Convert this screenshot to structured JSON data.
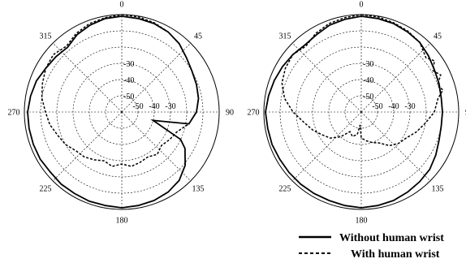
{
  "chart_data": [
    {
      "type": "polar-line",
      "angle_unit": "deg",
      "angle_zero": "top",
      "angle_direction": "clockwise",
      "angle_ticks": [
        0,
        45,
        90,
        135,
        180,
        225,
        270,
        315
      ],
      "angle_tick_labels": [
        "0",
        "45",
        "90",
        "135",
        "180",
        "225",
        "270",
        "315"
      ],
      "radial_range_db": [
        -60,
        0
      ],
      "radial_ticks": [
        -50,
        -40,
        -30
      ],
      "radial_tick_labels": [
        "-50",
        "-40",
        "-30"
      ],
      "grid": true,
      "series": [
        {
          "name": "Without human wrist",
          "style": "solid",
          "color": "#000000",
          "points": [
            [
              0,
              -1
            ],
            [
              10,
              -1.5
            ],
            [
              20,
              -2
            ],
            [
              30,
              -3
            ],
            [
              40,
              -5
            ],
            [
              50,
              -8
            ],
            [
              60,
              -10
            ],
            [
              70,
              -11
            ],
            [
              80,
              -12
            ],
            [
              90,
              -14
            ],
            [
              100,
              -18
            ],
            [
              105,
              -40
            ],
            [
              115,
              -20
            ],
            [
              120,
              -15
            ],
            [
              130,
              -9
            ],
            [
              140,
              -5
            ],
            [
              150,
              -3
            ],
            [
              160,
              -2
            ],
            [
              170,
              -1.5
            ],
            [
              180,
              -1
            ],
            [
              190,
              -1.5
            ],
            [
              200,
              -1.5
            ],
            [
              210,
              -2
            ],
            [
              220,
              -2
            ],
            [
              230,
              -2.5
            ],
            [
              240,
              -2
            ],
            [
              250,
              -2
            ],
            [
              260,
              -2
            ],
            [
              270,
              -2
            ],
            [
              280,
              -3
            ],
            [
              290,
              -4
            ],
            [
              300,
              -6
            ],
            [
              310,
              -7
            ],
            [
              320,
              -8
            ],
            [
              330,
              -5
            ],
            [
              340,
              -3
            ],
            [
              350,
              -1.5
            ]
          ]
        },
        {
          "name": "With human wrist",
          "style": "dashed",
          "color": "#000000",
          "points": [
            [
              0,
              0
            ],
            [
              10,
              -0.5
            ],
            [
              20,
              -1.5
            ],
            [
              30,
              -3
            ],
            [
              40,
              -5
            ],
            [
              50,
              -8
            ],
            [
              60,
              -10
            ],
            [
              70,
              -11
            ],
            [
              80,
              -12
            ],
            [
              90,
              -14
            ],
            [
              100,
              -18
            ],
            [
              110,
              -24
            ],
            [
              120,
              -26
            ],
            [
              130,
              -28
            ],
            [
              140,
              -26
            ],
            [
              150,
              -28
            ],
            [
              160,
              -27
            ],
            [
              170,
              -26
            ],
            [
              180,
              -28
            ],
            [
              190,
              -26
            ],
            [
              200,
              -28
            ],
            [
              210,
              -26
            ],
            [
              220,
              -24
            ],
            [
              230,
              -23
            ],
            [
              240,
              -20
            ],
            [
              250,
              -18
            ],
            [
              260,
              -15
            ],
            [
              270,
              -13
            ],
            [
              280,
              -10
            ],
            [
              290,
              -8
            ],
            [
              300,
              -6
            ],
            [
              310,
              -5
            ],
            [
              320,
              -7
            ],
            [
              330,
              -4
            ],
            [
              340,
              -2
            ],
            [
              350,
              -1
            ]
          ]
        }
      ]
    },
    {
      "type": "polar-line",
      "angle_unit": "deg",
      "angle_zero": "top",
      "angle_direction": "clockwise",
      "angle_ticks": [
        0,
        45,
        90,
        135,
        180,
        225,
        270,
        315
      ],
      "angle_tick_labels": [
        "0",
        "45",
        "90",
        "135",
        "180",
        "225",
        "270",
        "315"
      ],
      "radial_range_db": [
        -60,
        0
      ],
      "radial_ticks": [
        -50,
        -40,
        -30
      ],
      "radial_tick_labels": [
        "-50",
        "-40",
        "-30"
      ],
      "grid": true,
      "series": [
        {
          "name": "Without human wrist",
          "style": "solid",
          "color": "#000000",
          "points": [
            [
              0,
              -1
            ],
            [
              10,
              -1.5
            ],
            [
              20,
              -2
            ],
            [
              30,
              -3
            ],
            [
              40,
              -4
            ],
            [
              50,
              -6
            ],
            [
              60,
              -8
            ],
            [
              70,
              -9
            ],
            [
              80,
              -10
            ],
            [
              90,
              -10
            ],
            [
              100,
              -10
            ],
            [
              110,
              -9
            ],
            [
              120,
              -7
            ],
            [
              130,
              -5
            ],
            [
              140,
              -4
            ],
            [
              150,
              -3
            ],
            [
              160,
              -2
            ],
            [
              170,
              -1.5
            ],
            [
              180,
              -1
            ],
            [
              190,
              -1.5
            ],
            [
              200,
              -2
            ],
            [
              210,
              -2
            ],
            [
              220,
              -2
            ],
            [
              230,
              -2
            ],
            [
              240,
              -2
            ],
            [
              250,
              -1.5
            ],
            [
              260,
              -1.5
            ],
            [
              270,
              -1
            ],
            [
              280,
              -2
            ],
            [
              290,
              -3
            ],
            [
              300,
              -4
            ],
            [
              310,
              -5
            ],
            [
              320,
              -6
            ],
            [
              330,
              -5
            ],
            [
              340,
              -3
            ],
            [
              350,
              -2
            ]
          ]
        },
        {
          "name": "With human wrist",
          "style": "dashed",
          "color": "#000000",
          "points": [
            [
              0,
              0
            ],
            [
              10,
              -0.5
            ],
            [
              20,
              -1.5
            ],
            [
              30,
              -2.5
            ],
            [
              40,
              -4
            ],
            [
              50,
              -8
            ],
            [
              55,
              -5
            ],
            [
              60,
              -9
            ],
            [
              65,
              -6
            ],
            [
              70,
              -10
            ],
            [
              75,
              -8
            ],
            [
              80,
              -12
            ],
            [
              90,
              -15
            ],
            [
              100,
              -20
            ],
            [
              110,
              -24
            ],
            [
              120,
              -28
            ],
            [
              130,
              -30
            ],
            [
              140,
              -33
            ],
            [
              150,
              -38
            ],
            [
              160,
              -40
            ],
            [
              170,
              -42
            ],
            [
              180,
              -44
            ],
            [
              185,
              -52
            ],
            [
              190,
              -46
            ],
            [
              200,
              -44
            ],
            [
              210,
              -46
            ],
            [
              220,
              -40
            ],
            [
              230,
              -35
            ],
            [
              240,
              -32
            ],
            [
              250,
              -28
            ],
            [
              260,
              -24
            ],
            [
              270,
              -18
            ],
            [
              280,
              -12
            ],
            [
              290,
              -8
            ],
            [
              300,
              -6
            ],
            [
              310,
              -5
            ],
            [
              320,
              -7
            ],
            [
              330,
              -4
            ],
            [
              340,
              -2
            ],
            [
              350,
              -1
            ]
          ]
        }
      ]
    }
  ],
  "legend": {
    "items": [
      {
        "label": "Without human wrist",
        "style": "solid"
      },
      {
        "label": "With human wrist",
        "style": "dashed"
      }
    ]
  }
}
